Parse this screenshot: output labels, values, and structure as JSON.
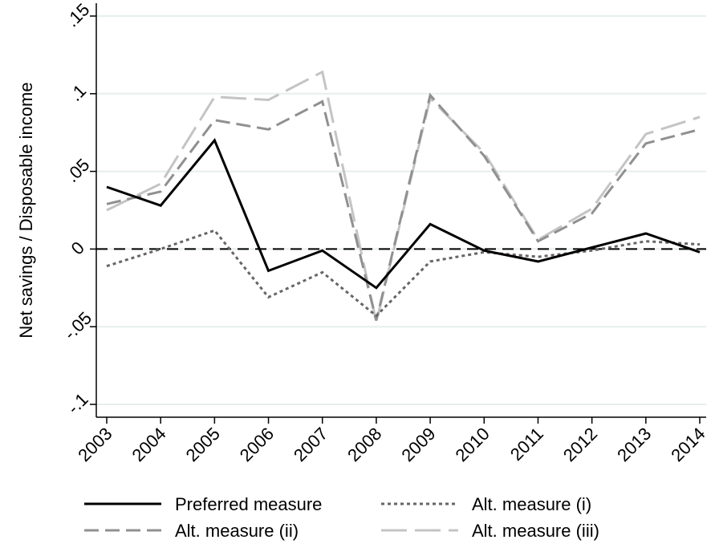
{
  "chart_data": {
    "type": "line",
    "title": "",
    "xlabel": "",
    "ylabel": "Net savings / Disposable income",
    "x": [
      "2003",
      "2004",
      "2005",
      "2006",
      "2007",
      "2008",
      "2009",
      "2010",
      "2011",
      "2012",
      "2013",
      "2014"
    ],
    "ylim": [
      -0.1,
      0.15
    ],
    "yticks": [
      -0.1,
      -0.05,
      0,
      0.05,
      0.1,
      0.15
    ],
    "ytick_labels": [
      "-.1",
      "-.05",
      "0",
      ".05",
      ".1",
      ".15"
    ],
    "grid": true,
    "reference_line": {
      "y": 0,
      "style": "dashed",
      "color": "#000000"
    },
    "legend_position": "bottom",
    "series": [
      {
        "name": "Preferred measure",
        "color": "#000000",
        "style": "solid",
        "values": [
          0.04,
          0.028,
          0.07,
          -0.014,
          -0.001,
          -0.025,
          0.016,
          -0.001,
          -0.008,
          0.001,
          0.01,
          -0.002
        ]
      },
      {
        "name": "Alt. measure (i)",
        "color": "#666666",
        "style": "dotted",
        "values": [
          -0.011,
          0.0,
          0.012,
          -0.031,
          -0.015,
          -0.043,
          -0.008,
          -0.002,
          -0.005,
          -0.001,
          0.005,
          0.003
        ]
      },
      {
        "name": "Alt. measure (ii)",
        "color": "#909090",
        "style": "dashed",
        "values": [
          0.029,
          0.037,
          0.083,
          0.077,
          0.095,
          -0.046,
          0.099,
          0.06,
          0.005,
          0.023,
          0.068,
          0.077
        ]
      },
      {
        "name": "Alt. measure (iii)",
        "color": "#c4c4c4",
        "style": "longdash",
        "values": [
          0.025,
          0.042,
          0.098,
          0.096,
          0.114,
          -0.047,
          0.097,
          0.062,
          0.006,
          0.026,
          0.074,
          0.085
        ]
      }
    ]
  }
}
